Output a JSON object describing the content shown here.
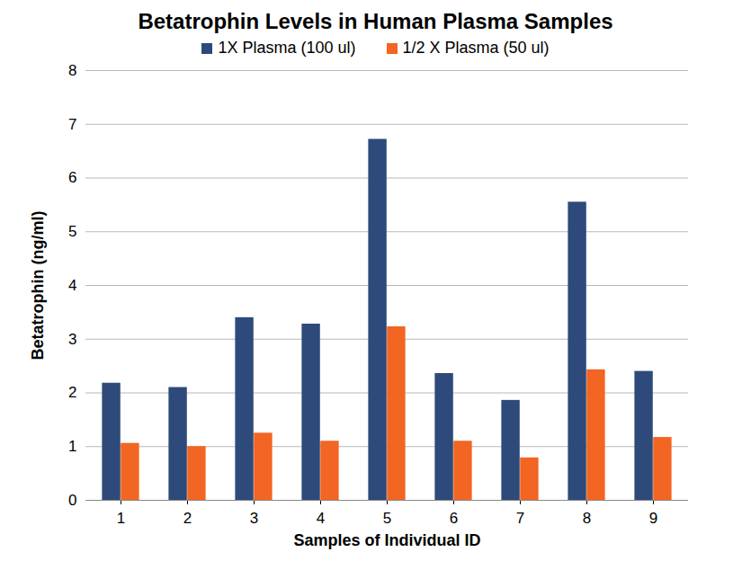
{
  "chart_data": {
    "type": "bar",
    "title": "Betatrophin Levels in Human Plasma Samples",
    "x_label": "Samples of Individual ID",
    "y_label": "Betatrophin (ng/ml)",
    "categories": [
      "1",
      "2",
      "3",
      "4",
      "5",
      "6",
      "7",
      "8",
      "9"
    ],
    "series": [
      {
        "name": "1X Plasma (100 ul)",
        "color": "#2E4A7A",
        "values": [
          2.18,
          2.1,
          3.4,
          3.28,
          6.72,
          2.36,
          1.86,
          5.55,
          2.4
        ]
      },
      {
        "name": "1/2 X Plasma (50 ul)",
        "color": "#F26522",
        "values": [
          1.06,
          1.0,
          1.25,
          1.1,
          3.23,
          1.1,
          0.79,
          2.43,
          1.17
        ]
      }
    ],
    "ylim": [
      0,
      8
    ],
    "yticks": [
      0,
      1,
      2,
      3,
      4,
      5,
      6,
      7,
      8
    ],
    "grid": true,
    "legend": "top"
  }
}
